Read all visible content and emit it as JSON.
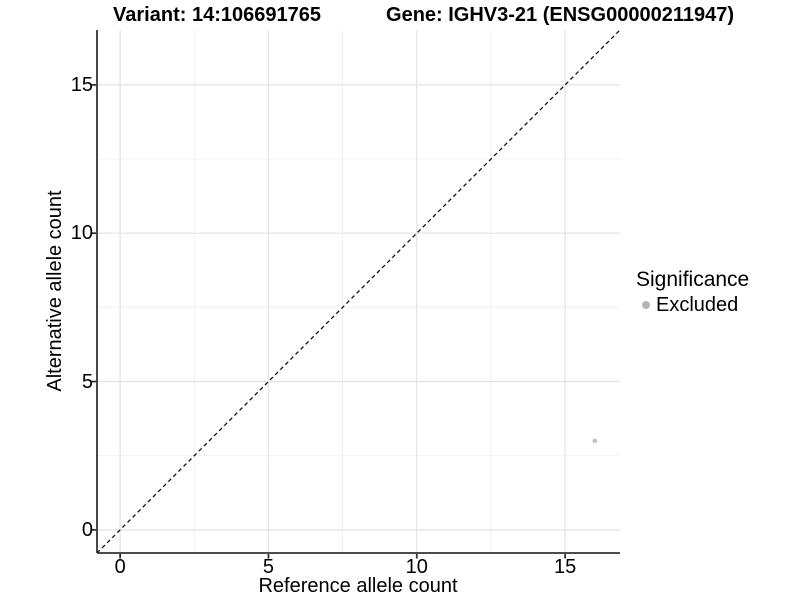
{
  "figure": {
    "title_variant": "Variant: 14:106691765",
    "title_gene": "Gene: IGHV3-21 (ENSG00000211947)"
  },
  "axes": {
    "x": {
      "label": "Reference allele count",
      "tick_labels": [
        "0",
        "5",
        "10",
        "15"
      ]
    },
    "y": {
      "label": "Alternative allele count",
      "tick_labels": [
        "0",
        "5",
        "10",
        "15"
      ]
    }
  },
  "legend": {
    "title": "Significance",
    "items": [
      {
        "label": "Excluded",
        "color": "#B5B5B5",
        "marker": "circle-icon"
      }
    ]
  },
  "colors": {
    "background": "#FFFFFF",
    "grid_major": "#E3E3E3",
    "grid_minor": "#F0F0F0",
    "axis_line": "#333333",
    "tick_mark": "#333333",
    "text": "#000000",
    "reference_line": "#111111",
    "point": "#C0C0C0"
  },
  "chart_data": {
    "type": "scatter",
    "title": "Variant: 14:106691765  |  Gene: IGHV3-21 (ENSG00000211947)",
    "xlabel": "Reference allele count",
    "ylabel": "Alternative allele count",
    "xlim": [
      -0.78,
      16.85
    ],
    "ylim": [
      -0.78,
      16.85
    ],
    "x_major_ticks": [
      0,
      5,
      10,
      15
    ],
    "y_major_ticks": [
      0,
      5,
      10,
      15
    ],
    "x_minor_ticks": [
      2.5,
      7.5,
      12.5
    ],
    "y_minor_ticks": [
      2.5,
      7.5,
      12.5
    ],
    "grid": true,
    "legend_position": "right",
    "legend_title": "Significance",
    "series": [
      {
        "name": "Excluded",
        "color": "#C0C0C0",
        "points": [
          {
            "x": 16,
            "y": 3
          }
        ]
      }
    ],
    "reference_line": {
      "kind": "abline",
      "slope": 1,
      "intercept": 0,
      "style": "dashed",
      "color": "#111111"
    }
  }
}
